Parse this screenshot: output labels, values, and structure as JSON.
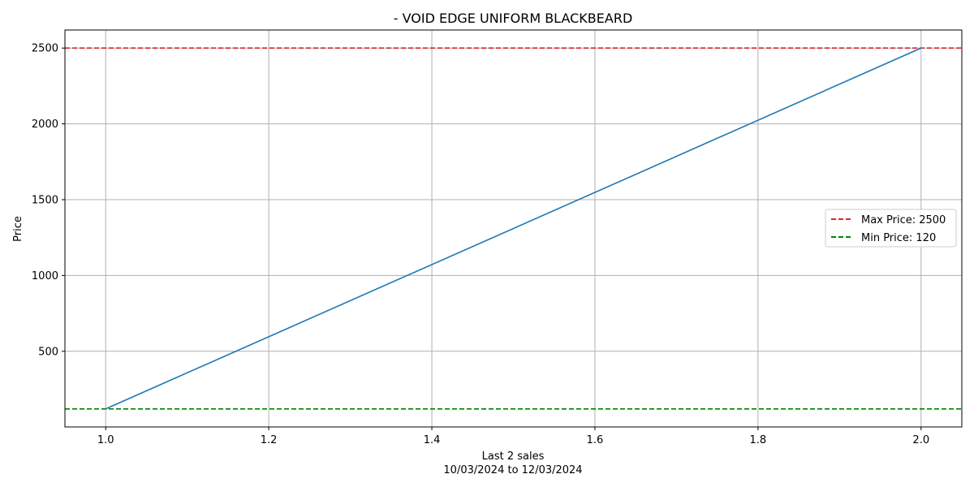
{
  "chart_data": {
    "type": "line",
    "title": "- VOID EDGE UNIFORM BLACKBEARD",
    "xlabel": "Last 2 sales",
    "xlabel_sub": "10/03/2024 to 12/03/2024",
    "ylabel": "Price",
    "xlim": [
      0.95,
      2.05
    ],
    "ylim": [
      1,
      2619
    ],
    "x_ticks": [
      1.0,
      1.2,
      1.4,
      1.6,
      1.8,
      2.0
    ],
    "x_tick_labels": [
      "1.0",
      "1.2",
      "1.4",
      "1.6",
      "1.8",
      "2.0"
    ],
    "y_ticks": [
      500,
      1000,
      1500,
      2000,
      2500
    ],
    "y_tick_labels": [
      "500",
      "1000",
      "1500",
      "2000",
      "2500"
    ],
    "grid": true,
    "series": [
      {
        "name": "Price",
        "x": [
          1.0,
          2.0
        ],
        "values": [
          120,
          2500
        ],
        "color": "#1f77b4"
      }
    ],
    "reference_lines": [
      {
        "label": "Max Price: 2500",
        "value": 2500,
        "color": "#d62728",
        "style": "dashed"
      },
      {
        "label": "Min Price: 120",
        "value": 120,
        "color": "#008000",
        "style": "dashed"
      }
    ],
    "legend_placement": "center-right"
  }
}
